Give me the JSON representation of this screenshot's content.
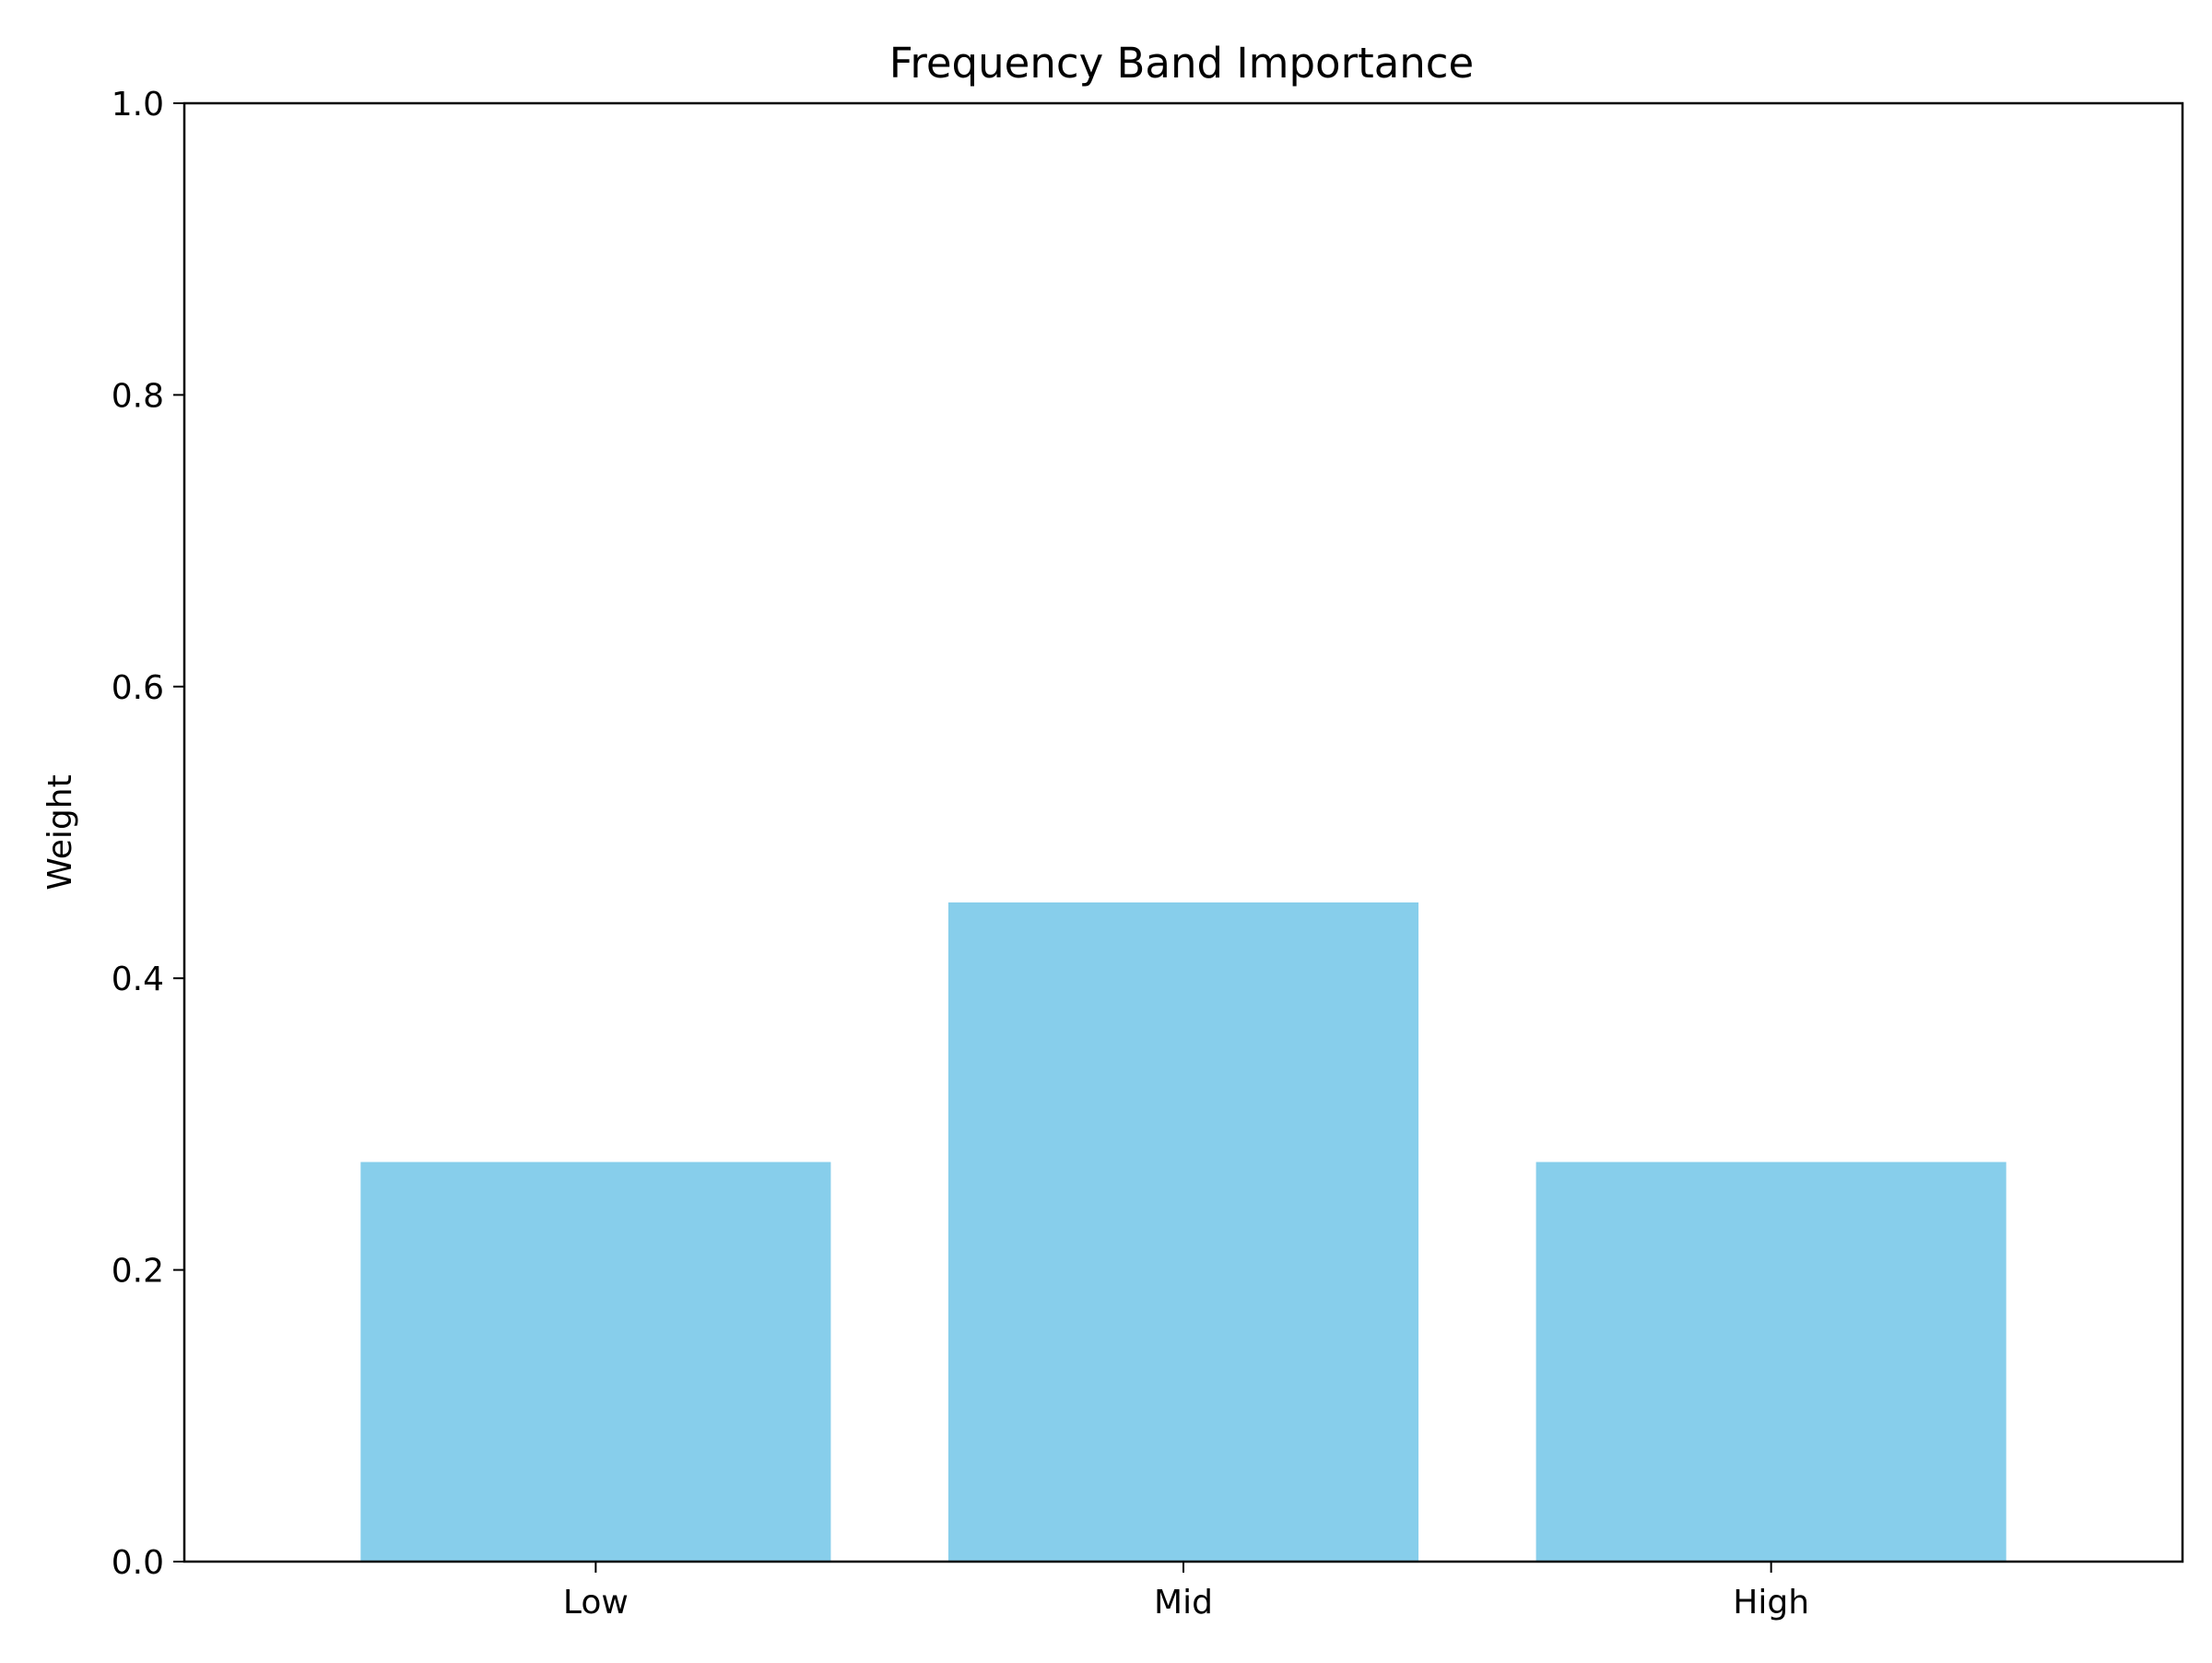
{
  "chart_data": {
    "type": "bar",
    "title": "Frequency Band Importance",
    "xlabel": "",
    "ylabel": "Weight",
    "categories": [
      "Low",
      "Mid",
      "High"
    ],
    "values": [
      0.274,
      0.452,
      0.274
    ],
    "ylim": [
      0,
      1.0
    ],
    "yticks": [
      0.0,
      0.2,
      0.4,
      0.6,
      0.8,
      1.0
    ],
    "ytick_labels": [
      "0.0",
      "0.2",
      "0.4",
      "0.6",
      "0.8",
      "1.0"
    ],
    "bar_color": "#87CEEB",
    "grid": false,
    "legend": "none"
  }
}
